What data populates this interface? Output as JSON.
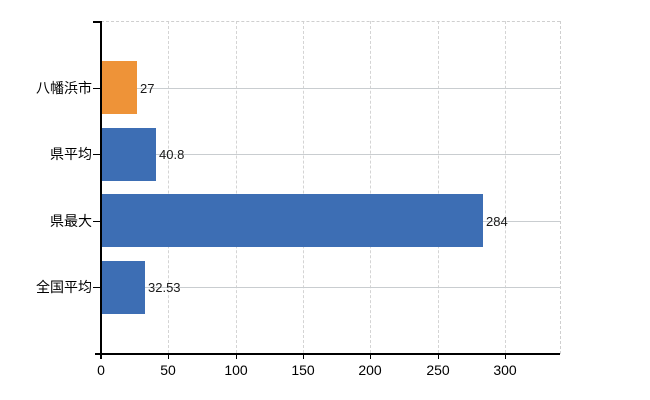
{
  "chart_data": {
    "type": "bar",
    "orientation": "horizontal",
    "title": "",
    "xlabel": "",
    "ylabel": "",
    "categories": [
      "八幡浜市",
      "県平均",
      "県最大",
      "全国平均"
    ],
    "values": [
      27,
      40.8,
      284,
      32.53
    ],
    "value_labels": [
      "27",
      "40.8",
      "284",
      "32.53"
    ],
    "bar_colors": [
      "#ee9338",
      "#3d6eb4",
      "#3d6eb4",
      "#3d6eb4"
    ],
    "x_ticks": [
      0,
      50,
      100,
      150,
      200,
      250,
      300
    ],
    "x_tick_labels": [
      "0",
      "50",
      "100",
      "150",
      "200",
      "250",
      "300"
    ],
    "xlim": [
      0,
      341
    ],
    "grid": true,
    "legend": false,
    "colors": {
      "accent_orange": "#ee9338",
      "accent_blue": "#3d6eb4",
      "axis": "#000000",
      "grid_vertical": "#d4d4d4",
      "grid_horizontal": "#c9cdd0",
      "text": "#1a1a1a",
      "background": "#ffffff"
    }
  }
}
